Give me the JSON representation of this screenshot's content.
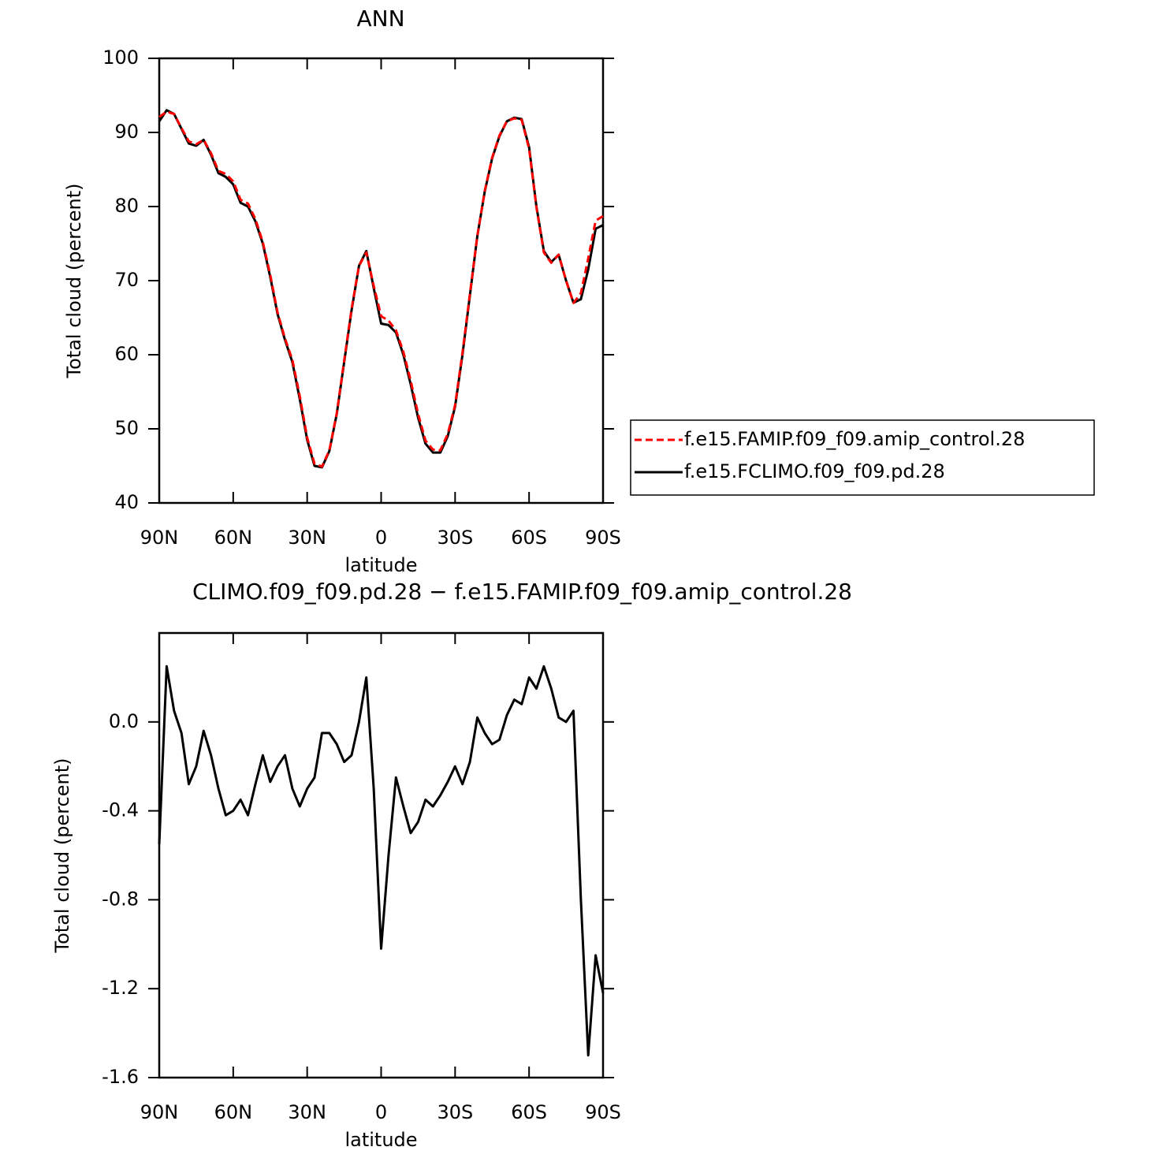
{
  "chart_data": [
    {
      "type": "line",
      "title": "ANN",
      "xlabel": "latitude",
      "ylabel": "Total cloud (percent)",
      "x": [
        90,
        87,
        84,
        81,
        78,
        75,
        72,
        69,
        66,
        63,
        60,
        57,
        54,
        51,
        48,
        45,
        42,
        39,
        36,
        33,
        30,
        27,
        24,
        21,
        18,
        15,
        12,
        9,
        6,
        3,
        0,
        -3,
        -6,
        -9,
        -12,
        -15,
        -18,
        -21,
        -24,
        -27,
        -30,
        -33,
        -36,
        -39,
        -42,
        -45,
        -48,
        -51,
        -54,
        -57,
        -60,
        -63,
        -66,
        -69,
        -72,
        -75,
        -78,
        -81,
        -84,
        -87,
        -90
      ],
      "series": [
        {
          "name": "f.e15.FAMIP.f09_f09.amip_control.28",
          "color": "#ff0000",
          "line_style": "dashed",
          "values": [
            92.1,
            92.8,
            92.5,
            90.6,
            88.8,
            88.4,
            89.0,
            87.2,
            84.8,
            84.4,
            83.4,
            80.9,
            80.4,
            78.3,
            75.2,
            70.8,
            65.7,
            62.2,
            59.3,
            54.4,
            48.8,
            45.3,
            44.9,
            47.1,
            52.1,
            59.2,
            66.2,
            72,
            73.8,
            69.3,
            65.2,
            64.6,
            63.3,
            60.4,
            56.5,
            52.0,
            48.4,
            47.2,
            47.1,
            49.3,
            53.2,
            60.3,
            68.2,
            76.0,
            82.1,
            86.6,
            89.6,
            91.5,
            91.9,
            91.7,
            87.8,
            79.9,
            73.8,
            72.4,
            73.5,
            70,
            67.0,
            68.3,
            73.0,
            78.1,
            78.7
          ]
        },
        {
          "name": "f.e15.FCLIMO.f09_f09.pd.28",
          "color": "#000000",
          "line_style": "solid",
          "values": [
            91.5,
            93,
            92.5,
            90.5,
            88.5,
            88.2,
            89,
            87,
            84.5,
            84,
            83,
            80.5,
            80,
            78,
            75,
            70.5,
            65.5,
            62,
            59,
            54,
            48.5,
            45,
            44.8,
            47,
            52,
            59,
            66,
            72,
            74,
            69,
            64.2,
            64,
            63,
            60,
            56,
            51.5,
            48,
            46.8,
            46.8,
            49,
            53,
            60,
            68,
            76,
            82,
            86.5,
            89.5,
            91.5,
            92,
            91.8,
            88,
            80,
            74,
            72.5,
            73.5,
            70,
            67,
            67.5,
            71.5,
            77,
            77.5
          ]
        }
      ],
      "xlim": [
        90,
        -90
      ],
      "xticks": [
        {
          "value": 90,
          "label": "90N"
        },
        {
          "value": 60,
          "label": "60N"
        },
        {
          "value": 30,
          "label": "30N"
        },
        0,
        {
          "value": -30,
          "label": "30S"
        },
        {
          "value": -60,
          "label": "60S"
        },
        {
          "value": -90,
          "label": "90S"
        }
      ],
      "ylim": [
        40,
        100
      ],
      "yticks": [
        40,
        50,
        60,
        70,
        80,
        90,
        100
      ],
      "legend": "right"
    },
    {
      "type": "line",
      "title": "CLIMO.f09_f09.pd.28 − f.e15.FAMIP.f09_f09.amip_control.28",
      "xlabel": "latitude",
      "ylabel": "Total cloud (percent)",
      "x": [
        90,
        87,
        84,
        81,
        78,
        75,
        72,
        69,
        66,
        63,
        60,
        57,
        54,
        51,
        48,
        45,
        42,
        39,
        36,
        33,
        30,
        27,
        24,
        21,
        18,
        15,
        12,
        9,
        6,
        3,
        0,
        -3,
        -6,
        -9,
        -12,
        -15,
        -18,
        -21,
        -24,
        -27,
        -30,
        -33,
        -36,
        -39,
        -42,
        -45,
        -48,
        -51,
        -54,
        -57,
        -60,
        -63,
        -66,
        -69,
        -72,
        -75,
        -78,
        -81,
        -84,
        -87,
        -90
      ],
      "values": [
        -0.55,
        0.25,
        0.05,
        -0.05,
        -0.28,
        -0.2,
        -0.04,
        -0.15,
        -0.3,
        -0.42,
        -0.4,
        -0.35,
        -0.42,
        -0.28,
        -0.15,
        -0.27,
        -0.2,
        -0.15,
        -0.3,
        -0.38,
        -0.3,
        -0.25,
        -0.05,
        -0.05,
        -0.1,
        -0.18,
        -0.15,
        0.0,
        0.2,
        -0.3,
        -1.02,
        -0.6,
        -0.25,
        -0.38,
        -0.5,
        -0.45,
        -0.35,
        -0.38,
        -0.33,
        -0.27,
        -0.2,
        -0.28,
        -0.18,
        0.02,
        -0.05,
        -0.1,
        -0.08,
        0.03,
        0.1,
        0.08,
        0.2,
        0.15,
        0.25,
        0.15,
        0.02,
        0.0,
        0.05,
        -0.8,
        -1.5,
        -1.05,
        -1.22
      ],
      "color": "#000000",
      "line_style": "solid",
      "xlim": [
        90,
        -90
      ],
      "xticks": [
        {
          "value": 90,
          "label": "90N"
        },
        {
          "value": 60,
          "label": "60N"
        },
        {
          "value": 30,
          "label": "30N"
        },
        0,
        {
          "value": -30,
          "label": "30S"
        },
        {
          "value": -60,
          "label": "60S"
        },
        {
          "value": -90,
          "label": "90S"
        }
      ],
      "ylim": [
        -1.6,
        0.4
      ],
      "yticks": [
        -1.6,
        -1.2,
        -0.8,
        -0.4,
        {
          "value": 0,
          "label": "0.0"
        }
      ]
    }
  ]
}
